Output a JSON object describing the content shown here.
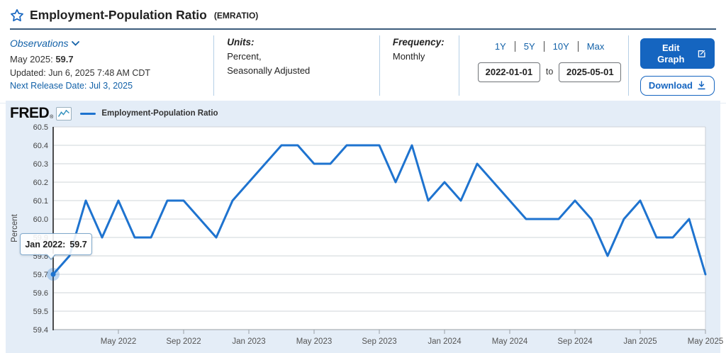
{
  "header": {
    "title": "Employment-Population Ratio",
    "code": "(EMRATIO)"
  },
  "meta": {
    "observations_label": "Observations",
    "latest_label": "May 2025:",
    "latest_value": "59.7",
    "updated": "Updated: Jun 6, 2025 7:48 AM CDT",
    "next_release": "Next Release Date: Jul 3, 2025",
    "units_label": "Units:",
    "units_line1": "Percent,",
    "units_line2": "Seasonally Adjusted",
    "frequency_label": "Frequency:",
    "frequency_value": "Monthly",
    "range_links": [
      "1Y",
      "5Y",
      "10Y",
      "Max"
    ],
    "date_start": "2022-01-01",
    "date_to_label": "to",
    "date_end": "2025-05-01",
    "edit_graph_label": "Edit Graph",
    "download_label": "Download"
  },
  "chart": {
    "logo_text": "FRED",
    "logo_reg": "®",
    "legend_label": "Employment-Population Ratio",
    "tooltip_label": "Jan 2022:",
    "tooltip_value": "59.7"
  },
  "chart_data": {
    "type": "line",
    "title": "Employment-Population Ratio",
    "xlabel": "",
    "ylabel": "Percent",
    "ylim": [
      59.4,
      60.5
    ],
    "ytick_step": 0.1,
    "grid": true,
    "legend_position": "top-left",
    "line_color": "#1e73cf",
    "x": [
      "2022-01",
      "2022-02",
      "2022-03",
      "2022-04",
      "2022-05",
      "2022-06",
      "2022-07",
      "2022-08",
      "2022-09",
      "2022-10",
      "2022-11",
      "2022-12",
      "2023-01",
      "2023-02",
      "2023-03",
      "2023-04",
      "2023-05",
      "2023-06",
      "2023-07",
      "2023-08",
      "2023-09",
      "2023-10",
      "2023-11",
      "2023-12",
      "2024-01",
      "2024-02",
      "2024-03",
      "2024-04",
      "2024-05",
      "2024-06",
      "2024-07",
      "2024-08",
      "2024-09",
      "2024-10",
      "2024-11",
      "2024-12",
      "2025-01",
      "2025-02",
      "2025-03",
      "2025-04",
      "2025-05"
    ],
    "values": [
      59.7,
      59.8,
      60.1,
      59.9,
      60.1,
      59.9,
      59.9,
      60.1,
      60.1,
      60.0,
      59.9,
      60.1,
      60.2,
      60.3,
      60.4,
      60.4,
      60.3,
      60.3,
      60.4,
      60.4,
      60.4,
      60.2,
      60.4,
      60.1,
      60.2,
      60.1,
      60.3,
      60.2,
      60.1,
      60.0,
      60.0,
      60.0,
      60.1,
      60.0,
      59.8,
      60.0,
      60.1,
      59.9,
      59.9,
      60.0,
      59.7
    ],
    "xtick_indices": [
      4,
      8,
      12,
      16,
      20,
      24,
      28,
      32,
      36,
      40
    ],
    "xtick_labels": [
      "May 2022",
      "Sep 2022",
      "Jan 2023",
      "May 2023",
      "Sep 2023",
      "Jan 2024",
      "May 2024",
      "Sep 2024",
      "Jan 2025",
      "May 2025"
    ],
    "highlight_index": 0
  },
  "colors": {
    "accent_blue": "#1565c0",
    "link_blue": "#1261a8",
    "line_blue": "#1e73cf"
  }
}
